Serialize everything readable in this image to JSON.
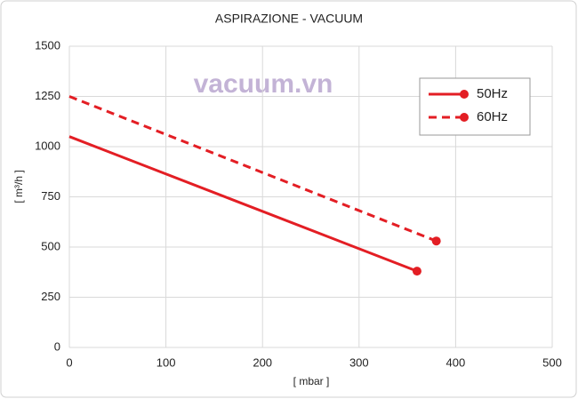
{
  "chart_data": {
    "type": "line",
    "title": "ASPIRAZIONE - VACUUM",
    "x_label": "[ mbar ]",
    "y_label": "[ m³/h ]",
    "annotation": "vacuum.vn",
    "series": [
      {
        "name": "50Hz",
        "color": "#e31e24",
        "dash": "solid",
        "x": [
          0,
          360
        ],
        "values": [
          1050,
          380
        ]
      },
      {
        "name": "60Hz",
        "color": "#e31e24",
        "dash": "dashed",
        "x": [
          0,
          380
        ],
        "values": [
          1250,
          530
        ]
      }
    ],
    "xlim": [
      0,
      500
    ],
    "xticks": [
      0,
      100,
      200,
      300,
      400,
      500
    ],
    "ylim": [
      0,
      1500
    ],
    "yticks": [
      0,
      250,
      500,
      750,
      1000,
      1250,
      1500
    ],
    "grid": true,
    "legend": "upper right"
  }
}
